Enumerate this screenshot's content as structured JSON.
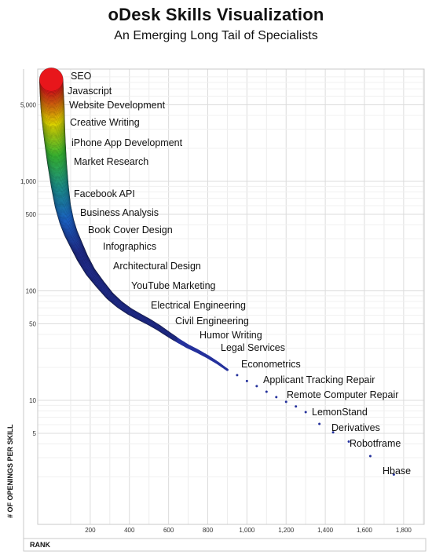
{
  "header": {
    "title": "oDesk Skills Visualization",
    "subtitle": "An Emerging Long Tail of Specialists"
  },
  "chart_data": {
    "type": "scatter",
    "title": "oDesk Skills Visualization",
    "subtitle": "An Emerging Long Tail of Specialists",
    "xlabel": "RANK",
    "ylabel": "# OF OPENINGS PER SKILL",
    "xlim": [
      0,
      1900
    ],
    "ylim": [
      1,
      10000
    ],
    "yscale": "log",
    "grid": true,
    "x_ticks": [
      200,
      400,
      600,
      800,
      1000,
      1200,
      1400,
      1600,
      1800
    ],
    "x_tick_labels": [
      "200",
      "400",
      "600",
      "800",
      "1,000",
      "1,200",
      "1,400",
      "1,600",
      "1,800"
    ],
    "y_ticks": [
      5,
      10,
      50,
      100,
      500,
      1000,
      5000
    ],
    "y_tick_labels": [
      "5",
      "10",
      "50",
      "100",
      "500",
      "1,000",
      "5,000"
    ],
    "color_scale": [
      "#e8161b",
      "#fff200",
      "#3fd13a",
      "#1fa3a0",
      "#1f6fe0",
      "#24319c"
    ],
    "curve": [
      {
        "x": 1,
        "y": 8500
      },
      {
        "x": 2,
        "y": 7500
      },
      {
        "x": 4,
        "y": 6200
      },
      {
        "x": 7,
        "y": 5000
      },
      {
        "x": 10,
        "y": 4000
      },
      {
        "x": 15,
        "y": 3000
      },
      {
        "x": 20,
        "y": 2300
      },
      {
        "x": 30,
        "y": 1500
      },
      {
        "x": 45,
        "y": 900
      },
      {
        "x": 60,
        "y": 600
      },
      {
        "x": 80,
        "y": 430
      },
      {
        "x": 100,
        "y": 340
      },
      {
        "x": 130,
        "y": 260
      },
      {
        "x": 160,
        "y": 200
      },
      {
        "x": 200,
        "y": 150
      },
      {
        "x": 250,
        "y": 115
      },
      {
        "x": 300,
        "y": 90
      },
      {
        "x": 350,
        "y": 75
      },
      {
        "x": 400,
        "y": 65
      },
      {
        "x": 450,
        "y": 58
      },
      {
        "x": 500,
        "y": 52
      },
      {
        "x": 550,
        "y": 46
      },
      {
        "x": 600,
        "y": 40
      },
      {
        "x": 650,
        "y": 35
      },
      {
        "x": 700,
        "y": 31
      },
      {
        "x": 750,
        "y": 28
      },
      {
        "x": 800,
        "y": 25
      },
      {
        "x": 850,
        "y": 22
      },
      {
        "x": 900,
        "y": 19
      },
      {
        "x": 950,
        "y": 17
      },
      {
        "x": 1000,
        "y": 15
      },
      {
        "x": 1050,
        "y": 13.5
      },
      {
        "x": 1100,
        "y": 12
      },
      {
        "x": 1150,
        "y": 10.7
      },
      {
        "x": 1200,
        "y": 9.7
      },
      {
        "x": 1250,
        "y": 8.8
      },
      {
        "x": 1300,
        "y": 7.8
      },
      {
        "x": 1370,
        "y": 6.1
      },
      {
        "x": 1440,
        "y": 5.1
      },
      {
        "x": 1520,
        "y": 4.2
      },
      {
        "x": 1630,
        "y": 3.1
      },
      {
        "x": 1750,
        "y": 2.1
      }
    ],
    "labeled_points": [
      {
        "label": "SEO",
        "x": 1,
        "y": 8500
      },
      {
        "label": "Javascript",
        "x": 4,
        "y": 6200
      },
      {
        "label": "Website Development",
        "x": 7,
        "y": 5000
      },
      {
        "label": "Creative Writing",
        "x": 12,
        "y": 3500
      },
      {
        "label": "iPhone App Development",
        "x": 20,
        "y": 2300
      },
      {
        "label": "Market Research",
        "x": 30,
        "y": 1500
      },
      {
        "label": "Facebook API",
        "x": 50,
        "y": 800
      },
      {
        "label": "Business Analysis",
        "x": 70,
        "y": 520
      },
      {
        "label": "Book Cover Design",
        "x": 95,
        "y": 370
      },
      {
        "label": "Infographics",
        "x": 120,
        "y": 285
      },
      {
        "label": "Architectural Design",
        "x": 160,
        "y": 200
      },
      {
        "label": "YouTube Marketing",
        "x": 230,
        "y": 130
      },
      {
        "label": "Electrical Engineering",
        "x": 350,
        "y": 80
      },
      {
        "label": "Civil Engineering",
        "x": 460,
        "y": 60
      },
      {
        "label": "Humor Writing",
        "x": 560,
        "y": 47
      },
      {
        "label": "Legal Services",
        "x": 650,
        "y": 38
      },
      {
        "label": "Econometrics",
        "x": 750,
        "y": 30
      },
      {
        "label": "Applicant Tracking Repair",
        "x": 1050,
        "y": 13.5
      },
      {
        "label": "Remote Computer Repair",
        "x": 1170,
        "y": 10.5
      },
      {
        "label": "LemonStand",
        "x": 1300,
        "y": 7.1
      },
      {
        "label": "Derivatives",
        "x": 1440,
        "y": 5.1
      },
      {
        "label": "Robotframe",
        "x": 1520,
        "y": 4.2
      },
      {
        "label": "Hbase",
        "x": 1750,
        "y": 2.1
      }
    ]
  }
}
